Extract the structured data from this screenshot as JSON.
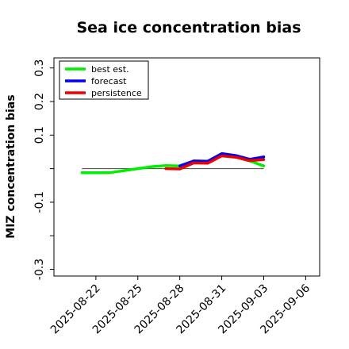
{
  "chart_data": {
    "type": "line",
    "title": "Sea ice concentration bias",
    "ylabel": "MIZ concentration bias",
    "xlabel": "",
    "ylim": [
      -0.32,
      0.33
    ],
    "y_ticks": [
      -0.3,
      -0.2,
      -0.1,
      0.0,
      0.1,
      0.2,
      0.3
    ],
    "y_tick_labels": [
      "-0.3",
      "",
      "-0.1",
      "",
      "0.1",
      "0.2",
      "0.3"
    ],
    "xlim": [
      "2025-08-19",
      "2025-09-07"
    ],
    "x_ticks": [
      "2025-08-22",
      "2025-08-25",
      "2025-08-28",
      "2025-08-31",
      "2025-09-03",
      "2025-09-06"
    ],
    "highlight_x_tick": "2025-08-28",
    "highlight_color": "#228b22",
    "zero_line": 0.0,
    "legend_position": "upper left",
    "series": [
      {
        "name": "best est.",
        "color": "#00ee00",
        "x": [
          "2025-08-21",
          "2025-08-23",
          "2025-08-25",
          "2025-08-26",
          "2025-08-27",
          "2025-08-28",
          "2025-08-29",
          "2025-08-30",
          "2025-08-31",
          "2025-09-01",
          "2025-09-02",
          "2025-09-03"
        ],
        "values": [
          -0.012,
          -0.012,
          0.0,
          0.006,
          0.009,
          0.008,
          0.022,
          0.022,
          0.04,
          0.035,
          0.023,
          0.008
        ]
      },
      {
        "name": "forecast",
        "color": "#0000ee",
        "x": [
          "2025-08-28",
          "2025-08-29",
          "2025-08-30",
          "2025-08-31",
          "2025-09-01",
          "2025-09-02",
          "2025-09-03"
        ],
        "values": [
          0.008,
          0.023,
          0.022,
          0.045,
          0.039,
          0.028,
          0.035
        ]
      },
      {
        "name": "persistence",
        "color": "#ee0000",
        "x": [
          "2025-08-27",
          "2025-08-28",
          "2025-08-29",
          "2025-08-30",
          "2025-08-31",
          "2025-09-01",
          "2025-09-02",
          "2025-09-03"
        ],
        "values": [
          0.0,
          -0.001,
          0.017,
          0.016,
          0.038,
          0.034,
          0.024,
          0.027
        ]
      }
    ]
  }
}
